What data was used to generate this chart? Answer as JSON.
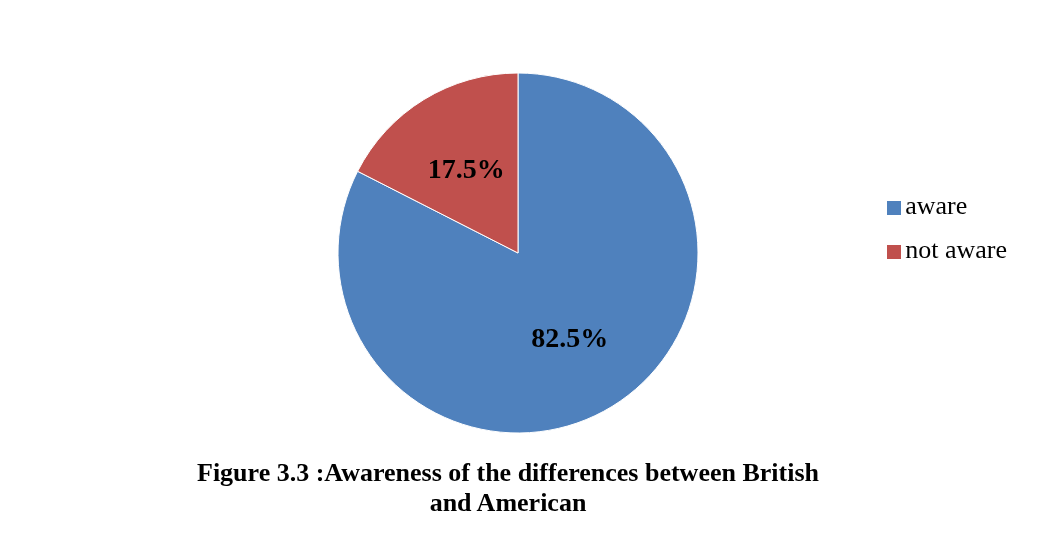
{
  "chart_data": {
    "type": "pie",
    "title": "Figure 3.3 :Awareness of the differences between British and American",
    "categories": [
      "aware",
      "not aware"
    ],
    "values": [
      82.5,
      17.5
    ],
    "colors": [
      "#4f81bd",
      "#c0504d"
    ],
    "value_labels": [
      "82.5%",
      "17.5%"
    ],
    "legend": "right"
  }
}
